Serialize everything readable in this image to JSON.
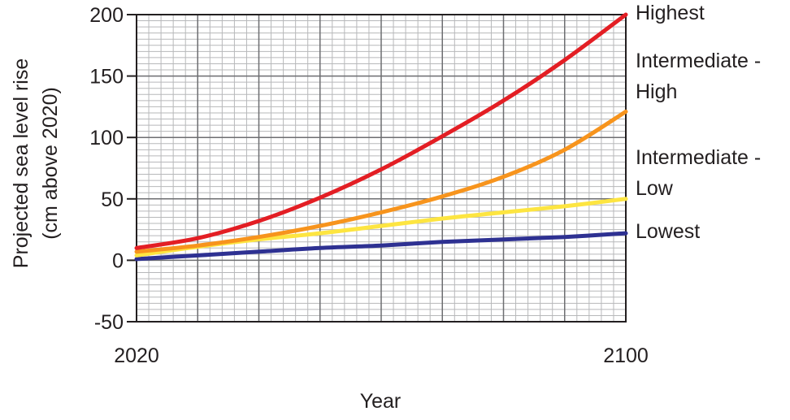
{
  "chart_data": {
    "type": "line",
    "xlabel": "Year",
    "ylabel": [
      "Projected sea level rise",
      "(cm above 2020)"
    ],
    "xlim": [
      2020,
      2100
    ],
    "ylim": [
      -50,
      200
    ],
    "x_ticks": [
      "2020",
      "2100"
    ],
    "y_ticks": [
      "200",
      "150",
      "100",
      "50",
      "0",
      "-50"
    ],
    "grid": true,
    "series": [
      {
        "name": "Highest",
        "label_lines": [
          "Highest"
        ],
        "color": "#e31e24",
        "x": [
          2020,
          2030,
          2040,
          2050,
          2060,
          2070,
          2080,
          2090,
          2100
        ],
        "values": [
          10,
          18,
          32,
          51,
          74,
          101,
          130,
          163,
          200
        ]
      },
      {
        "name": "Intermediate - High",
        "label_lines": [
          "Intermediate -",
          "High"
        ],
        "color": "#f7941d",
        "x": [
          2020,
          2030,
          2040,
          2050,
          2060,
          2070,
          2080,
          2090,
          2100
        ],
        "values": [
          7,
          12,
          19,
          28,
          39,
          52,
          68,
          90,
          121
        ]
      },
      {
        "name": "Intermediate - Low",
        "label_lines": [
          "Intermediate -",
          "Low"
        ],
        "color": "#fde541",
        "x": [
          2020,
          2030,
          2040,
          2050,
          2060,
          2070,
          2080,
          2090,
          2100
        ],
        "values": [
          4,
          11,
          17,
          22,
          28,
          34,
          39,
          44,
          50
        ]
      },
      {
        "name": "Lowest",
        "label_lines": [
          "Lowest"
        ],
        "color": "#2e3192",
        "x": [
          2020,
          2030,
          2040,
          2050,
          2060,
          2070,
          2080,
          2090,
          2100
        ],
        "values": [
          1,
          4,
          7,
          10,
          12,
          15,
          17,
          19,
          22
        ]
      }
    ]
  }
}
